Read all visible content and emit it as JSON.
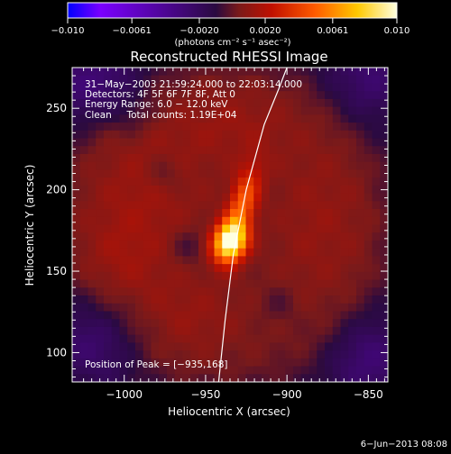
{
  "chart_data": {
    "type": "heatmap",
    "title": "Reconstructed RHESSI Image",
    "xlabel": "Heliocentric X (arcsec)",
    "ylabel": "Heliocentric Y (arcsec)",
    "xlim": [
      -1032,
      -838
    ],
    "ylim": [
      82,
      275
    ],
    "x_ticks": [
      -1000,
      -950,
      -900,
      -850
    ],
    "x_tick_labels": [
      "−1000",
      "−950",
      "−900",
      "−850"
    ],
    "y_ticks": [
      100,
      150,
      200,
      250
    ],
    "y_tick_labels": [
      "100",
      "150",
      "200",
      "250"
    ],
    "colorbar": {
      "min": -0.01,
      "max": 0.01,
      "ticks": [
        -0.01,
        -0.0061,
        -0.002,
        0.002,
        0.0061,
        0.01
      ],
      "tick_labels": [
        "−0.010",
        "−0.0061",
        "−0.0020",
        "0.0020",
        "0.0061",
        "0.010"
      ],
      "unit_label": "(photons cm⁻² s⁻¹ asec⁻²)"
    },
    "colormap_stops": [
      "#0000ff",
      "#7a00ff",
      "#2a0a40",
      "#7a1a1a",
      "#c01000",
      "#ff5a00",
      "#ffc800",
      "#ffffe0"
    ],
    "annotations": [
      "31−May−2003 21:59:24.000 to 22:03:14.000",
      "Detectors: 4F 5F 6F 7F 8F, Att 0",
      "Energy Range: 6.0 − 12.0 keV",
      "Clean     Total counts: 1.19E+04"
    ],
    "peak_text": "Position of Peak = [−935,168]",
    "peak": {
      "x": -935,
      "y": 168,
      "value": 0.01
    },
    "limb_curve": [
      [
        -942,
        82
      ],
      [
        -938,
        120
      ],
      [
        -933,
        160
      ],
      [
        -925,
        200
      ],
      [
        -914,
        240
      ],
      [
        -905,
        262
      ],
      [
        -900,
        275
      ]
    ],
    "sources": [
      {
        "x": -935,
        "y": 168,
        "sx": 7,
        "sy": 9,
        "amp": 0.0098,
        "angle": 20
      },
      {
        "x": -927,
        "y": 192,
        "sx": 6,
        "sy": 16,
        "amp": 0.0045,
        "angle": 15
      },
      {
        "x": -985,
        "y": 200,
        "sx": 30,
        "sy": 40,
        "amp": 0.0013,
        "angle": 0
      },
      {
        "x": -880,
        "y": 180,
        "sx": 25,
        "sy": 45,
        "amp": 0.0011,
        "angle": 0
      },
      {
        "x": -960,
        "y": 120,
        "sx": 30,
        "sy": 20,
        "amp": 0.001,
        "angle": 0
      },
      {
        "x": -930,
        "y": 240,
        "sx": 25,
        "sy": 18,
        "amp": 0.001,
        "angle": 0
      },
      {
        "x": -1005,
        "y": 150,
        "sx": 18,
        "sy": 25,
        "amp": 0.0009,
        "angle": 0
      },
      {
        "x": -960,
        "y": 165,
        "sx": 8,
        "sy": 8,
        "amp": -0.0012,
        "angle": 0
      },
      {
        "x": -975,
        "y": 210,
        "sx": 8,
        "sy": 8,
        "amp": -0.001,
        "angle": 0
      },
      {
        "x": -1015,
        "y": 110,
        "sx": 20,
        "sy": 20,
        "amp": -0.0022,
        "angle": 0
      },
      {
        "x": -1018,
        "y": 265,
        "sx": 22,
        "sy": 18,
        "amp": -0.0022,
        "angle": 0
      },
      {
        "x": -850,
        "y": 95,
        "sx": 18,
        "sy": 20,
        "amp": -0.002,
        "angle": 0
      },
      {
        "x": -850,
        "y": 270,
        "sx": 18,
        "sy": 20,
        "amp": -0.0018,
        "angle": 0
      },
      {
        "x": -905,
        "y": 130,
        "sx": 8,
        "sy": 8,
        "amp": -0.0008,
        "angle": 0
      },
      {
        "x": -995,
        "y": 245,
        "sx": 8,
        "sy": 8,
        "amp": -0.0008,
        "angle": 0
      }
    ],
    "grid": false
  },
  "footer": {
    "timestamp": "6−Jun−2013 08:08"
  }
}
